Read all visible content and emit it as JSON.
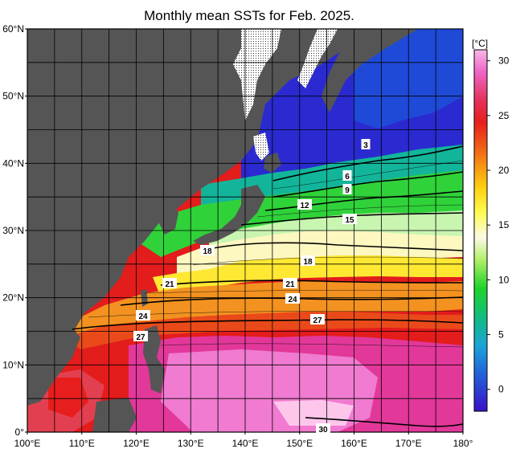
{
  "title": "Monthly mean SSTs for Feb. 2025.",
  "colorbar": {
    "unit": "[°C]",
    "ticks": [
      "30",
      "25",
      "20",
      "15",
      "10",
      "5",
      "0"
    ],
    "range": [
      -2,
      31
    ]
  },
  "lat_labels": [
    "60°N",
    "50°N",
    "40°N",
    "30°N",
    "20°N",
    "10°N",
    "0°"
  ],
  "lon_labels": [
    "100°E",
    "110°E",
    "120°E",
    "130°E",
    "140°E",
    "150°E",
    "160°E",
    "170°E",
    "180°"
  ],
  "contour_labels": [
    "3",
    "6",
    "9",
    "12",
    "15",
    "18",
    "18",
    "21",
    "21",
    "24",
    "24",
    "27",
    "27",
    "30"
  ],
  "colors": {
    "land": "#555555",
    "ice": "#ffffff",
    "grid": "#000000"
  }
}
